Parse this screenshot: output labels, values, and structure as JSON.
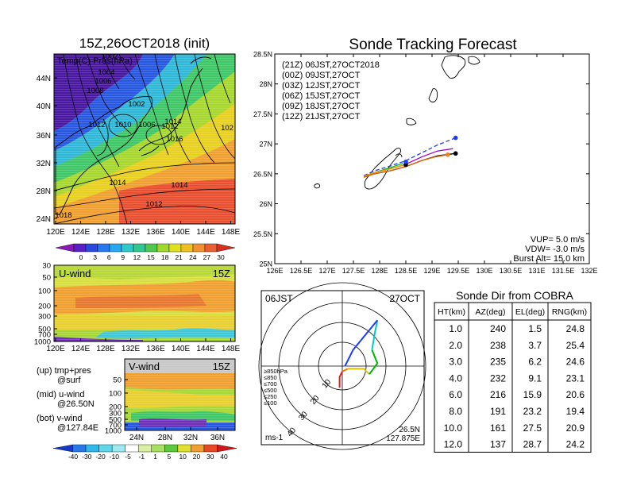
{
  "left_panel": {
    "title": "15Z,26OCT2018 (init)",
    "subtitle": "Temp(C) Pres(hPa)",
    "map_lat_ticks": [
      "44N",
      "40N",
      "36N",
      "32N",
      "28N",
      "24N"
    ],
    "map_lon_ticks": [
      "120E",
      "124E",
      "128E",
      "132E",
      "136E",
      "140E",
      "144E",
      "148E"
    ],
    "isobar_labels": [
      "1002",
      "1004",
      "1006",
      "1008",
      "1002",
      "1012",
      "1010",
      "1006",
      "1012",
      "1014",
      "1016",
      "102",
      "1014",
      "1014",
      "1012",
      "1018"
    ],
    "temp_colorbar": [
      "0",
      "3",
      "6",
      "9",
      "12",
      "15",
      "18",
      "21",
      "24",
      "27",
      "30"
    ],
    "uwind_label": "U-wind",
    "uwind_time": "15Z",
    "pres_ticks": [
      "30",
      "50",
      "100",
      "200",
      "300",
      "500",
      "700",
      "1000"
    ],
    "uwind_lon_ticks": [
      "120E",
      "124E",
      "128E",
      "132E",
      "136E",
      "140E",
      "144E",
      "148E"
    ],
    "vwind_label": "V-wind",
    "vwind_time": "15Z",
    "vwind_pres_ticks": [
      "50",
      "100",
      "200",
      "300",
      "500",
      "700",
      "1000"
    ],
    "vwind_lat_ticks": [
      "24N",
      "28N",
      "32N",
      "36N"
    ],
    "legend_lines": [
      "(up) tmp+pres",
      "@surf",
      "(mid) u-wind",
      "@26.50N",
      "(bot) v-wind",
      "@127.84E"
    ],
    "wind_colorbar": [
      "-40",
      "-30",
      "-20",
      "-10",
      "-5",
      "-1",
      "1",
      "5",
      "10",
      "20",
      "30",
      "40"
    ]
  },
  "tracking": {
    "title": "Sonde Tracking Forecast",
    "lat_ticks": [
      "28.5N",
      "28N",
      "27.5N",
      "27N",
      "26.5N",
      "26N",
      "25.5N",
      "25N"
    ],
    "lon_ticks": [
      "126E",
      "126.5E",
      "127E",
      "127.5E",
      "128E",
      "128.5E",
      "129E",
      "129.5E",
      "130E",
      "130.5E",
      "131E",
      "131.5E",
      "132E"
    ],
    "legend": [
      {
        "text": "(21Z) 06JST,27OCT2018",
        "color": "#000000"
      },
      {
        "text": "(00Z) 09JST,27OCT",
        "color": "#a000c8"
      },
      {
        "text": "(03Z) 12JST,27OCT",
        "color": "#1e3cff"
      },
      {
        "text": "(06Z) 15JST,27OCT",
        "color": "#00b400"
      },
      {
        "text": "(09Z) 18JST,27OCT",
        "color": "#f0a000"
      },
      {
        "text": "(12Z) 21JST,27OCT",
        "color": "#e06400"
      }
    ],
    "params": [
      "VUP= 5.0 m/s",
      "VDW= -3.0 m/s",
      "Burst Alt= 15.0 km"
    ]
  },
  "hodo": {
    "time": "06JST",
    "date": "27OCT",
    "ring_labels": [
      "10",
      "20",
      "30",
      "40"
    ],
    "pres_legend": [
      {
        "text": "≥850hPa",
        "color": "#e02020"
      },
      {
        "text": "≤850",
        "color": "#f07800"
      },
      {
        "text": "≤700",
        "color": "#e0c000"
      },
      {
        "text": "≤500",
        "color": "#00b400"
      },
      {
        "text": "≤250",
        "color": "#00c8c8"
      },
      {
        "text": "≤100",
        "color": "#1e3cff"
      }
    ],
    "unit": "ms-1",
    "lat": "26.5N",
    "lon": "127.875E"
  },
  "table": {
    "title": "Sonde Dir from COBRA",
    "headers": [
      "HT(km)",
      "AZ(deg)",
      "EL(deg)",
      "RNG(km)"
    ],
    "rows": [
      [
        "1.0",
        "240",
        "1.5",
        "24.8"
      ],
      [
        "2.0",
        "238",
        "3.7",
        "25.4"
      ],
      [
        "3.0",
        "235",
        "6.2",
        "24.6"
      ],
      [
        "4.0",
        "232",
        "9.1",
        "23.1"
      ],
      [
        "6.0",
        "216",
        "15.9",
        "20.6"
      ],
      [
        "8.0",
        "191",
        "23.2",
        "19.4"
      ],
      [
        "10.0",
        "161",
        "27.5",
        "20.9"
      ],
      [
        "12.0",
        "137",
        "28.7",
        "24.2"
      ]
    ]
  },
  "chart_data": [
    {
      "type": "line",
      "title": "Sonde Tracking Forecast",
      "xlim": [
        126,
        132
      ],
      "ylim": [
        25,
        28.5
      ],
      "series": [
        {
          "name": "(21Z) 06JST,27OCT2018",
          "color": "#000000",
          "style": "solid",
          "x": [
            127.7,
            127.9,
            128.2,
            128.5,
            128.8,
            129.1,
            129.45
          ],
          "y": [
            26.45,
            26.5,
            26.55,
            26.62,
            26.72,
            26.8,
            26.84
          ]
        },
        {
          "name": "(00Z) 09JST,27OCT",
          "color": "#a000c8",
          "style": "solid",
          "x": [
            127.7,
            127.9,
            128.2,
            128.5,
            128.8,
            129.1,
            129.4
          ],
          "y": [
            26.46,
            26.52,
            26.58,
            26.66,
            26.78,
            26.88,
            26.92
          ]
        },
        {
          "name": "(03Z) 12JST,27OCT",
          "color": "#1e3cff",
          "style": "dashed",
          "x": [
            127.7,
            127.9,
            128.2,
            128.5,
            128.8,
            129.1,
            129.45
          ],
          "y": [
            26.47,
            26.55,
            26.63,
            26.72,
            26.85,
            26.98,
            27.1
          ]
        },
        {
          "name": "(06Z) 15JST,27OCT",
          "color": "#00b400",
          "style": "solid",
          "x": [
            127.7,
            127.9,
            128.2,
            128.45
          ],
          "y": [
            26.46,
            26.52,
            26.6,
            26.68
          ]
        },
        {
          "name": "(09Z) 18JST,27OCT",
          "color": "#f0a000",
          "style": "solid",
          "x": [
            127.7,
            127.9,
            128.2,
            128.45
          ],
          "y": [
            26.46,
            26.52,
            26.58,
            26.65
          ]
        },
        {
          "name": "(12Z) 21JST,27OCT",
          "color": "#e06400",
          "style": "solid",
          "x": [
            127.7,
            127.9,
            128.2,
            128.5,
            128.8,
            129.05,
            129.3
          ],
          "y": [
            26.44,
            26.5,
            26.55,
            26.62,
            26.72,
            26.78,
            26.82
          ]
        }
      ],
      "endpoints": [
        {
          "x": 129.45,
          "y": 26.84,
          "color": "#000000"
        },
        {
          "x": 129.45,
          "y": 27.1,
          "color": "#1e3cff"
        },
        {
          "x": 129.3,
          "y": 26.82,
          "color": "#f08020"
        },
        {
          "x": 128.5,
          "y": 26.65,
          "color": "#000000"
        },
        {
          "x": 128.5,
          "y": 26.7,
          "color": "#1e3cff"
        }
      ]
    },
    {
      "type": "line",
      "title": "Hodograph 06JST 27OCT",
      "series": [
        {
          "name": "≥850hPa",
          "color": "#e02020",
          "u": [
            -1,
            -1,
            0
          ],
          "v": [
            -8,
            -4,
            -2
          ]
        },
        {
          "name": "≤850",
          "color": "#f07800",
          "u": [
            0,
            2
          ],
          "v": [
            -2,
            -1
          ]
        },
        {
          "name": "≤700",
          "color": "#e0c000",
          "u": [
            2,
            8,
            10
          ],
          "v": [
            -1,
            -1,
            -3
          ]
        },
        {
          "name": "≤500",
          "color": "#00b400",
          "u": [
            10,
            13,
            11
          ],
          "v": [
            -3,
            1,
            6
          ]
        },
        {
          "name": "≤250",
          "color": "#00c8c8",
          "u": [
            11,
            12,
            13
          ],
          "v": [
            6,
            12,
            17
          ]
        },
        {
          "name": "≤100",
          "color": "#1e3cff",
          "u": [
            13,
            4,
            1
          ],
          "v": [
            17,
            6,
            0
          ]
        }
      ]
    }
  ]
}
